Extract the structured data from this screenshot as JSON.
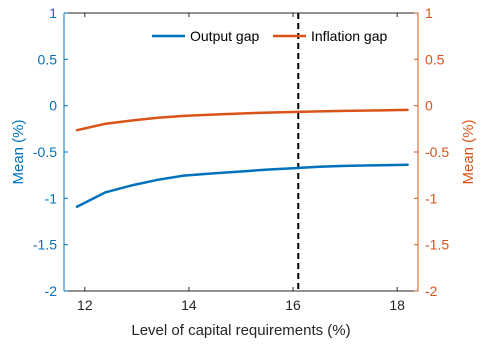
{
  "chart_data": {
    "type": "line",
    "title": "",
    "xlabel": "Level of capital requirements (%)",
    "ylabel_left": "Mean (%)",
    "ylabel_right": "Mean (%)",
    "xlim": [
      11.6,
      18.4
    ],
    "ylim_left": [
      -2,
      1
    ],
    "ylim_right": [
      -2,
      1
    ],
    "x_ticks": [
      12,
      14,
      16,
      18
    ],
    "x_tick_labels": [
      "12",
      "14",
      "16",
      "18"
    ],
    "y_ticks": [
      1,
      0.5,
      0,
      -0.5,
      -1,
      -1.5,
      -2
    ],
    "y_tick_labels": [
      "1",
      "0.5",
      "0",
      "-0.5",
      "-1",
      "-1.5",
      "-2"
    ],
    "grid": false,
    "legend_position": "top-right",
    "vertical_line": {
      "x": 16.1,
      "style": "dashed",
      "color": "#000000"
    },
    "colors": {
      "left_axis": "#0072BD",
      "right_axis": "#D95319",
      "axes": "#262626"
    },
    "series": [
      {
        "name": "Output gap",
        "axis": "left",
        "color": "#0072BD",
        "x": [
          11.85,
          12.4,
          12.9,
          13.4,
          13.9,
          14.5,
          15.0,
          15.5,
          16.0,
          16.5,
          17.0,
          17.5,
          18.2
        ],
        "values": [
          -1.09,
          -0.935,
          -0.86,
          -0.8,
          -0.755,
          -0.73,
          -0.71,
          -0.69,
          -0.675,
          -0.66,
          -0.65,
          -0.645,
          -0.638
        ]
      },
      {
        "name": "Inflation gap",
        "axis": "right",
        "color": "#D95319",
        "x": [
          11.85,
          12.4,
          12.9,
          13.4,
          13.9,
          14.5,
          15.0,
          15.5,
          16.0,
          16.5,
          17.0,
          17.5,
          18.2
        ],
        "values": [
          -0.265,
          -0.195,
          -0.16,
          -0.13,
          -0.11,
          -0.095,
          -0.085,
          -0.075,
          -0.068,
          -0.062,
          -0.056,
          -0.052,
          -0.046
        ]
      }
    ]
  }
}
